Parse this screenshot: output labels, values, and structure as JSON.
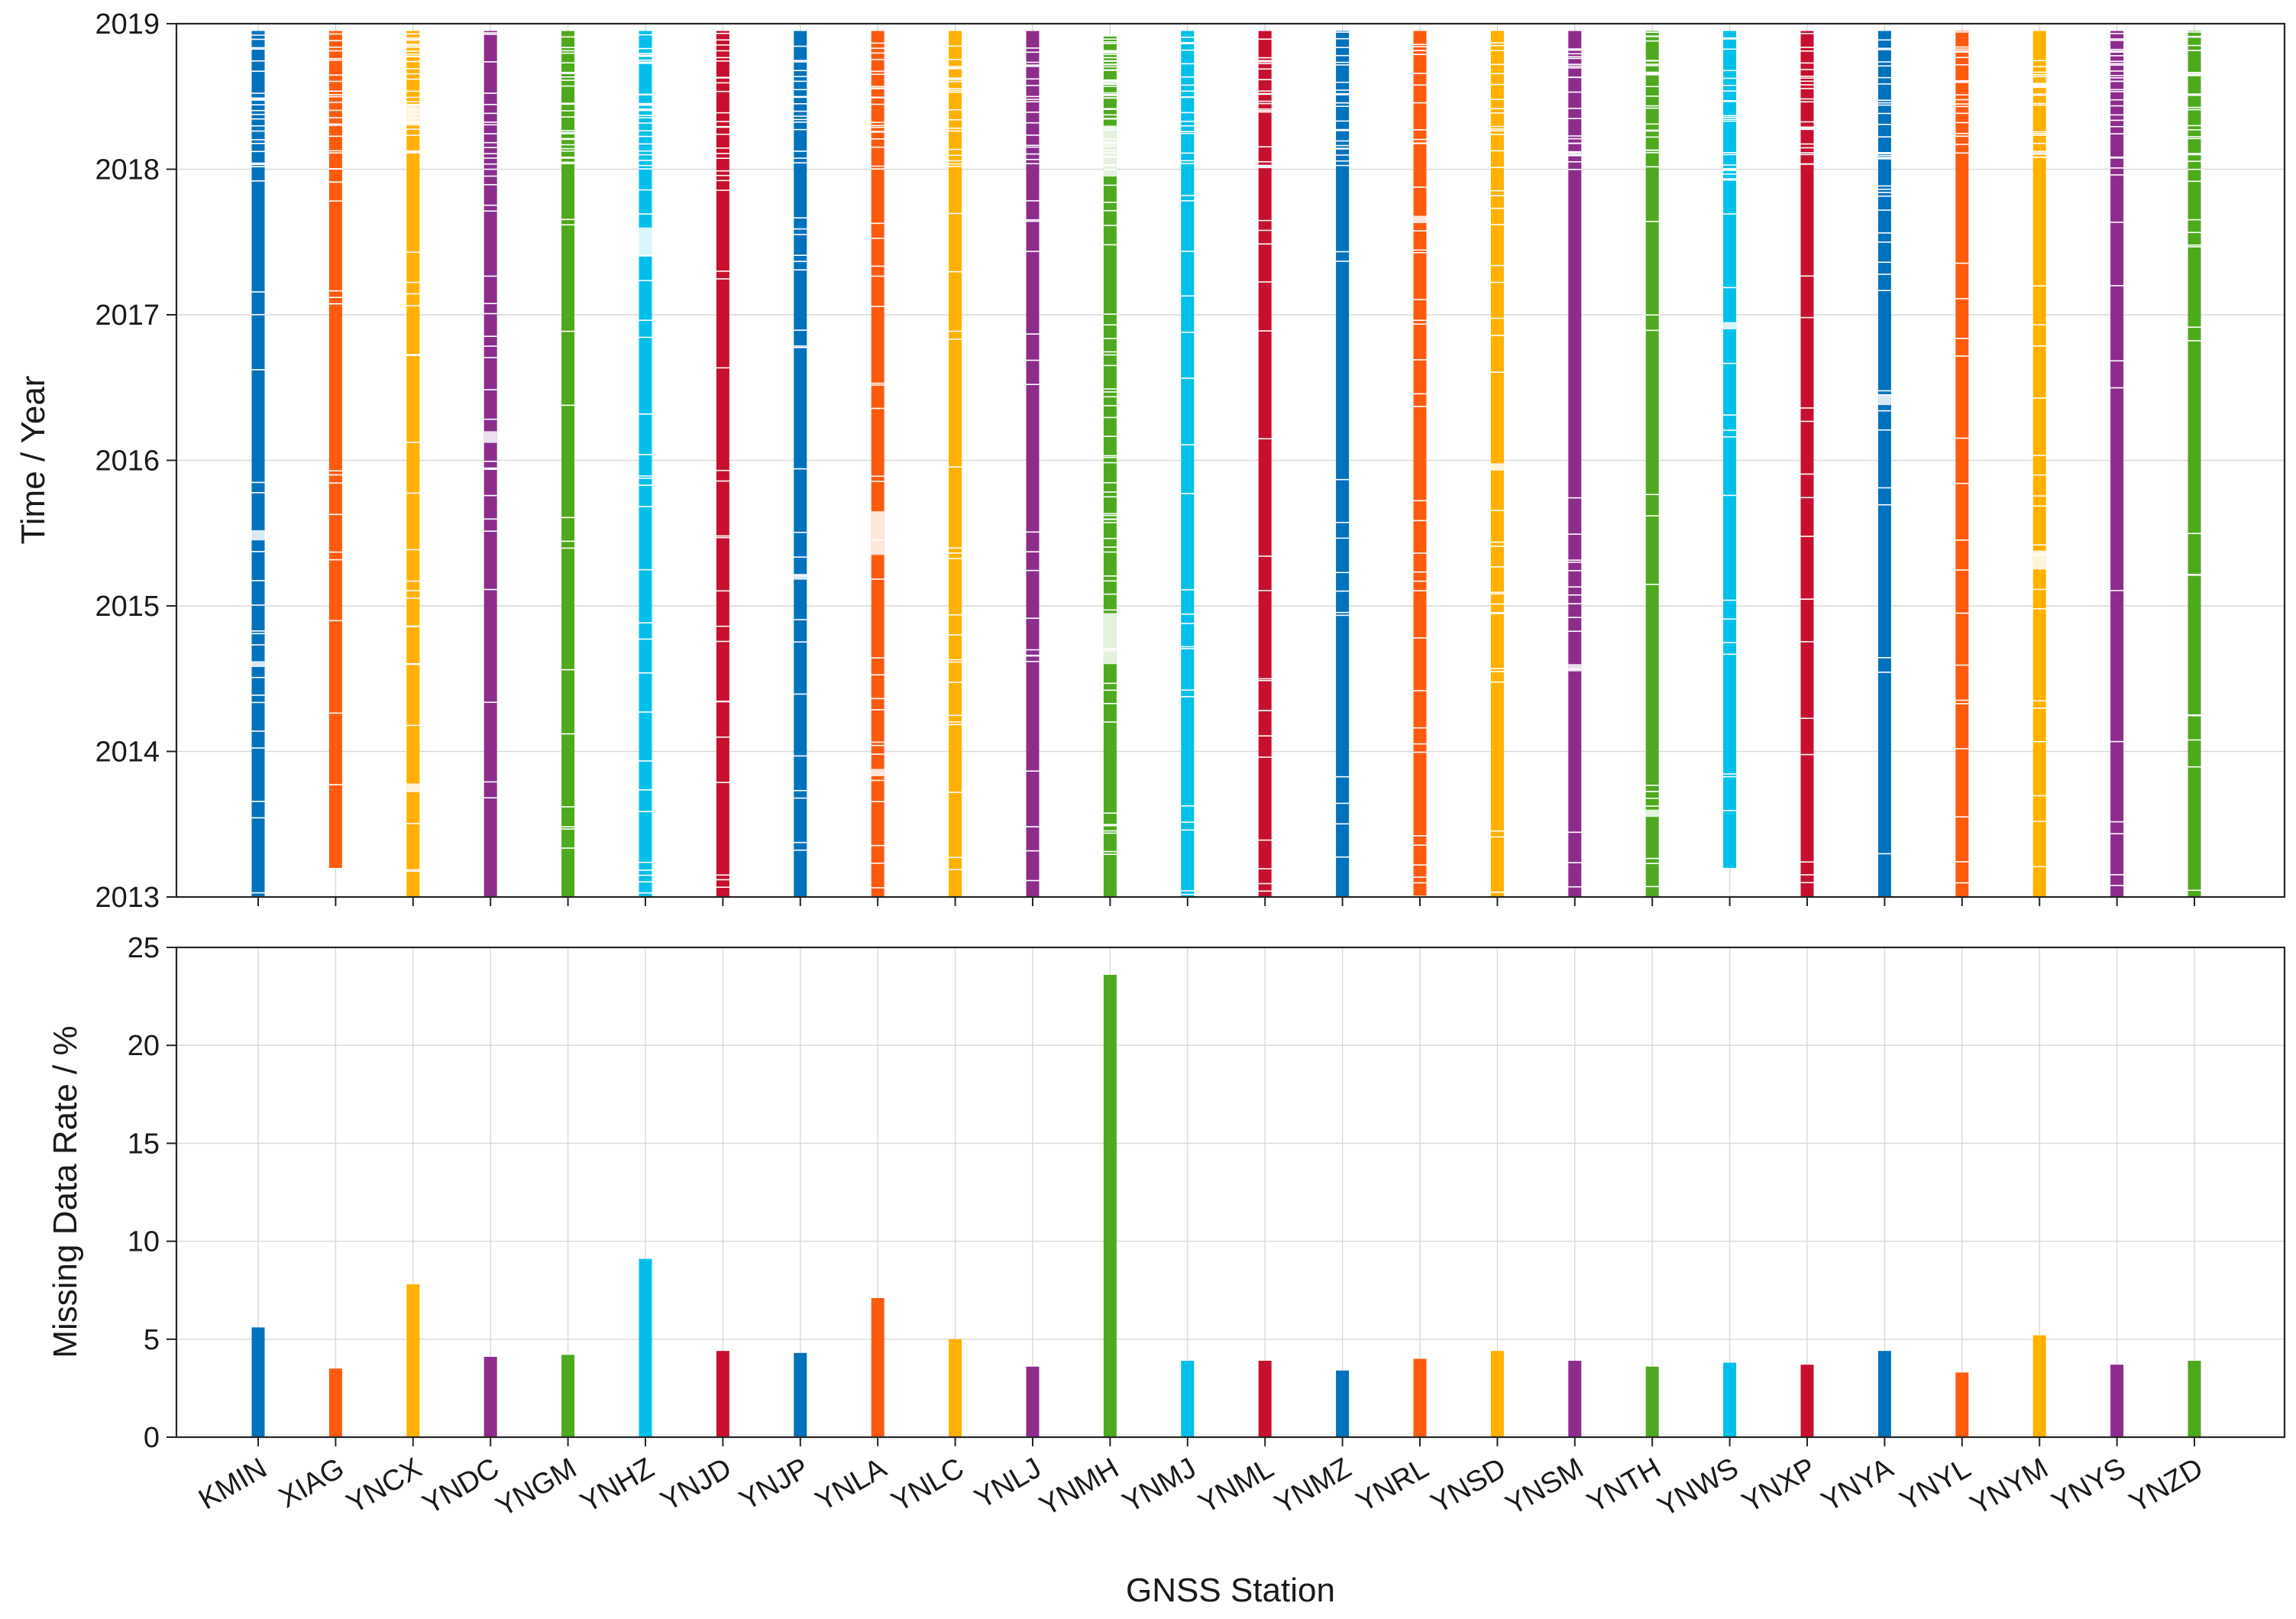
{
  "chart_data": [
    {
      "type": "timeline",
      "panel": "top",
      "xlabel": "",
      "ylabel": "Time / Year",
      "ylim": [
        2013,
        2019
      ],
      "yticks": [
        "2013",
        "2014",
        "2015",
        "2016",
        "2017",
        "2018",
        "2019"
      ],
      "grid": true,
      "categories": [
        "KMIN",
        "XIAG",
        "YNCX",
        "YNDC",
        "YNGM",
        "YNHZ",
        "YNJD",
        "YNJP",
        "YNLA",
        "YNLC",
        "YNLJ",
        "YNMH",
        "YNMJ",
        "YNML",
        "YNMZ",
        "YNRL",
        "YNSD",
        "YNSM",
        "YNTH",
        "YNWS",
        "YNXP",
        "YNYA",
        "YNYL",
        "YNYM",
        "YNYS",
        "YNZD"
      ],
      "colors": [
        "#0072BD",
        "#FF5A0E",
        "#FFB000",
        "#8E2C8E",
        "#4DAA1E",
        "#00BFEA",
        "#C8102E",
        "#0072BD",
        "#FF5A0E",
        "#FFB000",
        "#8E2C8E",
        "#4DAA1E",
        "#00BFEA",
        "#C8102E",
        "#0072BD",
        "#FF5A0E",
        "#FFB000",
        "#8E2C8E",
        "#4DAA1E",
        "#00BFEA",
        "#C8102E",
        "#0072BD",
        "#FF5A0E",
        "#FFB000",
        "#8E2C8E",
        "#4DAA1E"
      ],
      "coverage_start": [
        2013.0,
        2013.2,
        2013.0,
        2013.0,
        2013.0,
        2013.0,
        2013.0,
        2013.0,
        2013.0,
        2013.0,
        2013.0,
        2013.0,
        2013.0,
        2013.0,
        2013.0,
        2013.0,
        2013.0,
        2013.0,
        2013.0,
        2013.2,
        2013.0,
        2013.0,
        2013.0,
        2013.0,
        2013.0,
        2013.0
      ],
      "coverage_end": [
        2018.95,
        2018.95,
        2018.95,
        2018.95,
        2018.95,
        2018.95,
        2018.95,
        2018.95,
        2018.95,
        2018.95,
        2018.95,
        2018.92,
        2018.95,
        2018.95,
        2018.95,
        2018.95,
        2018.95,
        2018.95,
        2018.95,
        2018.95,
        2018.95,
        2018.95,
        2018.95,
        2018.95,
        2018.95,
        2018.95
      ],
      "major_gaps": [
        {
          "station": "KMIN",
          "from": 2015.45,
          "to": 2015.52
        },
        {
          "station": "KMIN",
          "from": 2014.58,
          "to": 2014.62
        },
        {
          "station": "YNCX",
          "from": 2018.3,
          "to": 2018.45
        },
        {
          "station": "YNCX",
          "from": 2013.72,
          "to": 2013.78
        },
        {
          "station": "YNDC",
          "from": 2016.12,
          "to": 2016.2
        },
        {
          "station": "YNHZ",
          "from": 2017.4,
          "to": 2017.6
        },
        {
          "station": "YNJP",
          "from": 2015.18,
          "to": 2015.22
        },
        {
          "station": "YNLA",
          "from": 2015.35,
          "to": 2015.65
        },
        {
          "station": "YNLA",
          "from": 2013.83,
          "to": 2013.88
        },
        {
          "station": "YNMH",
          "from": 2017.95,
          "to": 2018.3
        },
        {
          "station": "YNMH",
          "from": 2014.6,
          "to": 2014.95
        },
        {
          "station": "YNRL",
          "from": 2017.63,
          "to": 2017.68
        },
        {
          "station": "YNSD",
          "from": 2015.93,
          "to": 2015.98
        },
        {
          "station": "YNSM",
          "from": 2014.55,
          "to": 2014.6
        },
        {
          "station": "YNTH",
          "from": 2013.55,
          "to": 2013.6
        },
        {
          "station": "YNWS",
          "from": 2016.9,
          "to": 2016.95
        },
        {
          "station": "YNYA",
          "from": 2016.38,
          "to": 2016.45
        },
        {
          "station": "YNYM",
          "from": 2015.25,
          "to": 2015.38
        }
      ]
    },
    {
      "type": "bar",
      "panel": "bottom",
      "xlabel": "GNSS Station",
      "ylabel": "Missing Data Rate / %",
      "ylim": [
        0,
        25
      ],
      "yticks": [
        "0",
        "5",
        "10",
        "15",
        "20",
        "25"
      ],
      "grid": true,
      "categories": [
        "KMIN",
        "XIAG",
        "YNCX",
        "YNDC",
        "YNGM",
        "YNHZ",
        "YNJD",
        "YNJP",
        "YNLA",
        "YNLC",
        "YNLJ",
        "YNMH",
        "YNMJ",
        "YNML",
        "YNMZ",
        "YNRL",
        "YNSD",
        "YNSM",
        "YNTH",
        "YNWS",
        "YNXP",
        "YNYA",
        "YNYL",
        "YNYM",
        "YNYS",
        "YNZD"
      ],
      "values": [
        5.6,
        3.5,
        7.8,
        4.1,
        4.2,
        9.1,
        4.4,
        4.3,
        7.1,
        5.0,
        3.6,
        23.6,
        3.9,
        3.9,
        3.4,
        4.0,
        4.4,
        3.9,
        3.6,
        3.8,
        3.7,
        4.4,
        3.3,
        5.2,
        3.7,
        3.9
      ],
      "colors": [
        "#0072BD",
        "#FF5A0E",
        "#FFB000",
        "#8E2C8E",
        "#4DAA1E",
        "#00BFEA",
        "#C8102E",
        "#0072BD",
        "#FF5A0E",
        "#FFB000",
        "#8E2C8E",
        "#4DAA1E",
        "#00BFEA",
        "#C8102E",
        "#0072BD",
        "#FF5A0E",
        "#FFB000",
        "#8E2C8E",
        "#4DAA1E",
        "#00BFEA",
        "#C8102E",
        "#0072BD",
        "#FF5A0E",
        "#FFB000",
        "#8E2C8E",
        "#4DAA1E"
      ]
    }
  ]
}
